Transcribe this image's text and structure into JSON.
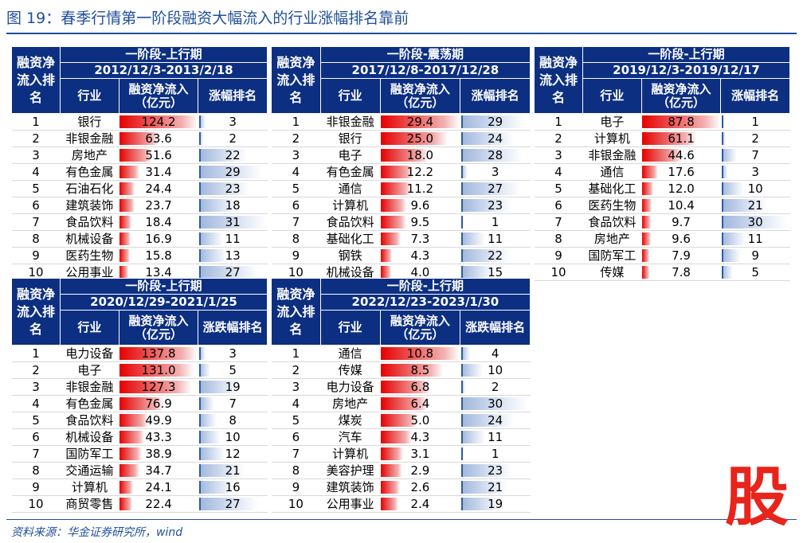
{
  "title": "图 19：春季行情第一阶段融资大幅流入的行业涨幅排名靠前",
  "source": "资料来源：华金证券研究所，wind",
  "stamp": "股",
  "colors": {
    "header_bg": "#0c2f82",
    "inflow_bar": "#e60000",
    "rank_bar": "#9fb6dc",
    "title": "#1f4e9c"
  },
  "headers": {
    "rank": "融资净流入排名",
    "industry": "行业",
    "inflow": "融资净流入（亿元）",
    "change_rank_1": "涨幅排名",
    "change_rank_2": "涨跌幅排名"
  },
  "tables": [
    {
      "phase": "一阶段-上行期",
      "period": "2012/12/3-2013/2/18",
      "rank_header": "涨幅排名",
      "max_inflow": 124.2,
      "rows": [
        {
          "n": "1",
          "industry": "银行",
          "inflow": "124.2",
          "rank": "3"
        },
        {
          "n": "2",
          "industry": "非银金融",
          "inflow": "63.6",
          "rank": "2"
        },
        {
          "n": "3",
          "industry": "房地产",
          "inflow": "51.6",
          "rank": "22"
        },
        {
          "n": "4",
          "industry": "有色金属",
          "inflow": "31.4",
          "rank": "29"
        },
        {
          "n": "5",
          "industry": "石油石化",
          "inflow": "24.4",
          "rank": "23"
        },
        {
          "n": "6",
          "industry": "建筑装饰",
          "inflow": "23.7",
          "rank": "18"
        },
        {
          "n": "7",
          "industry": "食品饮料",
          "inflow": "18.4",
          "rank": "31"
        },
        {
          "n": "8",
          "industry": "机械设备",
          "inflow": "16.9",
          "rank": "11"
        },
        {
          "n": "9",
          "industry": "医药生物",
          "inflow": "15.8",
          "rank": "13"
        },
        {
          "n": "10",
          "industry": "公用事业",
          "inflow": "13.4",
          "rank": "27"
        }
      ]
    },
    {
      "phase": "一阶段-震荡期",
      "period": "2017/12/8-2017/12/28",
      "rank_header": "涨幅排名",
      "max_inflow": 29.4,
      "rows": [
        {
          "n": "1",
          "industry": "非银金融",
          "inflow": "29.4",
          "rank": "29"
        },
        {
          "n": "2",
          "industry": "银行",
          "inflow": "25.0",
          "rank": "24"
        },
        {
          "n": "3",
          "industry": "电子",
          "inflow": "18.0",
          "rank": "28"
        },
        {
          "n": "4",
          "industry": "有色金属",
          "inflow": "12.2",
          "rank": "3"
        },
        {
          "n": "5",
          "industry": "通信",
          "inflow": "11.2",
          "rank": "27"
        },
        {
          "n": "6",
          "industry": "计算机",
          "inflow": "9.6",
          "rank": "23"
        },
        {
          "n": "7",
          "industry": "食品饮料",
          "inflow": "9.5",
          "rank": "1"
        },
        {
          "n": "8",
          "industry": "基础化工",
          "inflow": "7.3",
          "rank": "11"
        },
        {
          "n": "9",
          "industry": "钢铁",
          "inflow": "4.3",
          "rank": "22"
        },
        {
          "n": "10",
          "industry": "机械设备",
          "inflow": "4.0",
          "rank": "15"
        }
      ]
    },
    {
      "phase": "一阶段-上行期",
      "period": "2019/12/3-2019/12/17",
      "rank_header": "涨幅排名",
      "max_inflow": 87.8,
      "rows": [
        {
          "n": "1",
          "industry": "电子",
          "inflow": "87.8",
          "rank": "1"
        },
        {
          "n": "2",
          "industry": "计算机",
          "inflow": "61.1",
          "rank": "2"
        },
        {
          "n": "3",
          "industry": "非银金融",
          "inflow": "44.6",
          "rank": "7"
        },
        {
          "n": "4",
          "industry": "通信",
          "inflow": "17.6",
          "rank": "3"
        },
        {
          "n": "5",
          "industry": "基础化工",
          "inflow": "12.0",
          "rank": "10"
        },
        {
          "n": "6",
          "industry": "医药生物",
          "inflow": "10.4",
          "rank": "21"
        },
        {
          "n": "7",
          "industry": "食品饮料",
          "inflow": "9.7",
          "rank": "30"
        },
        {
          "n": "8",
          "industry": "房地产",
          "inflow": "9.6",
          "rank": "11"
        },
        {
          "n": "9",
          "industry": "国防军工",
          "inflow": "7.9",
          "rank": "9"
        },
        {
          "n": "10",
          "industry": "传媒",
          "inflow": "7.8",
          "rank": "5"
        }
      ]
    },
    {
      "phase": "一阶段-上行期",
      "period": "2020/12/29-2021/1/25",
      "rank_header": "涨跌幅排名",
      "max_inflow": 137.8,
      "rows": [
        {
          "n": "1",
          "industry": "电力设备",
          "inflow": "137.8",
          "rank": "3"
        },
        {
          "n": "2",
          "industry": "电子",
          "inflow": "131.0",
          "rank": "5"
        },
        {
          "n": "3",
          "industry": "非银金融",
          "inflow": "127.3",
          "rank": "19"
        },
        {
          "n": "4",
          "industry": "有色金属",
          "inflow": "76.9",
          "rank": "7"
        },
        {
          "n": "5",
          "industry": "食品饮料",
          "inflow": "49.9",
          "rank": "8"
        },
        {
          "n": "6",
          "industry": "机械设备",
          "inflow": "43.3",
          "rank": "10"
        },
        {
          "n": "7",
          "industry": "国防军工",
          "inflow": "38.9",
          "rank": "12"
        },
        {
          "n": "8",
          "industry": "交通运输",
          "inflow": "34.7",
          "rank": "21"
        },
        {
          "n": "9",
          "industry": "计算机",
          "inflow": "24.1",
          "rank": "16"
        },
        {
          "n": "10",
          "industry": "商贸零售",
          "inflow": "22.4",
          "rank": "27"
        }
      ]
    },
    {
      "phase": "一阶段-上行期",
      "period": "2022/12/23-2023/1/30",
      "rank_header": "涨跌幅排名",
      "max_inflow": 10.8,
      "rows": [
        {
          "n": "1",
          "industry": "通信",
          "inflow": "10.8",
          "rank": "4"
        },
        {
          "n": "2",
          "industry": "传媒",
          "inflow": "8.5",
          "rank": "10"
        },
        {
          "n": "3",
          "industry": "电力设备",
          "inflow": "6.8",
          "rank": "2"
        },
        {
          "n": "4",
          "industry": "房地产",
          "inflow": "6.4",
          "rank": "30"
        },
        {
          "n": "5",
          "industry": "煤炭",
          "inflow": "5.0",
          "rank": "24"
        },
        {
          "n": "6",
          "industry": "汽车",
          "inflow": "4.3",
          "rank": "11"
        },
        {
          "n": "7",
          "industry": "计算机",
          "inflow": "3.1",
          "rank": "1"
        },
        {
          "n": "8",
          "industry": "美容护理",
          "inflow": "2.9",
          "rank": "23"
        },
        {
          "n": "9",
          "industry": "建筑装饰",
          "inflow": "2.6",
          "rank": "21"
        },
        {
          "n": "10",
          "industry": "公用事业",
          "inflow": "2.4",
          "rank": "19"
        }
      ]
    }
  ]
}
